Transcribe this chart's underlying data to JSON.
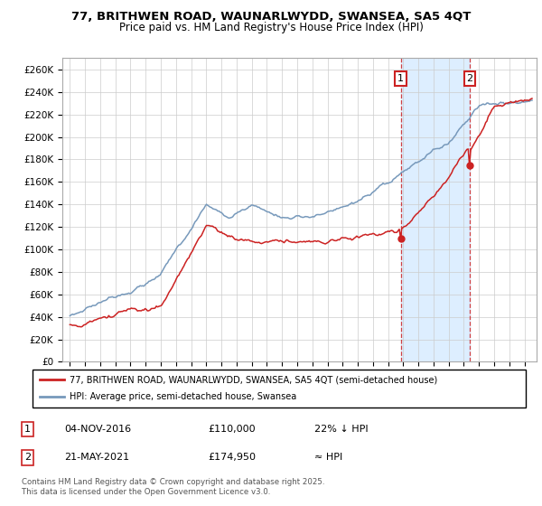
{
  "title": "77, BRITHWEN ROAD, WAUNARLWYDD, SWANSEA, SA5 4QT",
  "subtitle": "Price paid vs. HM Land Registry's House Price Index (HPI)",
  "ylabel_ticks": [
    "£0",
    "£20K",
    "£40K",
    "£60K",
    "£80K",
    "£100K",
    "£120K",
    "£140K",
    "£160K",
    "£180K",
    "£200K",
    "£220K",
    "£240K",
    "£260K"
  ],
  "ylim": [
    0,
    270000
  ],
  "sale1_date_num": 2016.843,
  "sale1_price": 110000,
  "sale2_date_num": 2021.385,
  "sale2_price": 174950,
  "legend_entry1": "77, BRITHWEN ROAD, WAUNARLWYDD, SWANSEA, SA5 4QT (semi-detached house)",
  "legend_entry2": "HPI: Average price, semi-detached house, Swansea",
  "table_row1": [
    "1",
    "04-NOV-2016",
    "£110,000",
    "22% ↓ HPI"
  ],
  "table_row2": [
    "2",
    "21-MAY-2021",
    "£174,950",
    "≈ HPI"
  ],
  "footer": "Contains HM Land Registry data © Crown copyright and database right 2025.\nThis data is licensed under the Open Government Licence v3.0.",
  "hpi_color": "#7799bb",
  "price_color": "#cc2222",
  "shaded_region_color": "#ddeeff",
  "grid_color": "#cccccc",
  "xmin": 1994.5,
  "xmax": 2025.8,
  "xtick_start": 1995,
  "xtick_end": 2026
}
